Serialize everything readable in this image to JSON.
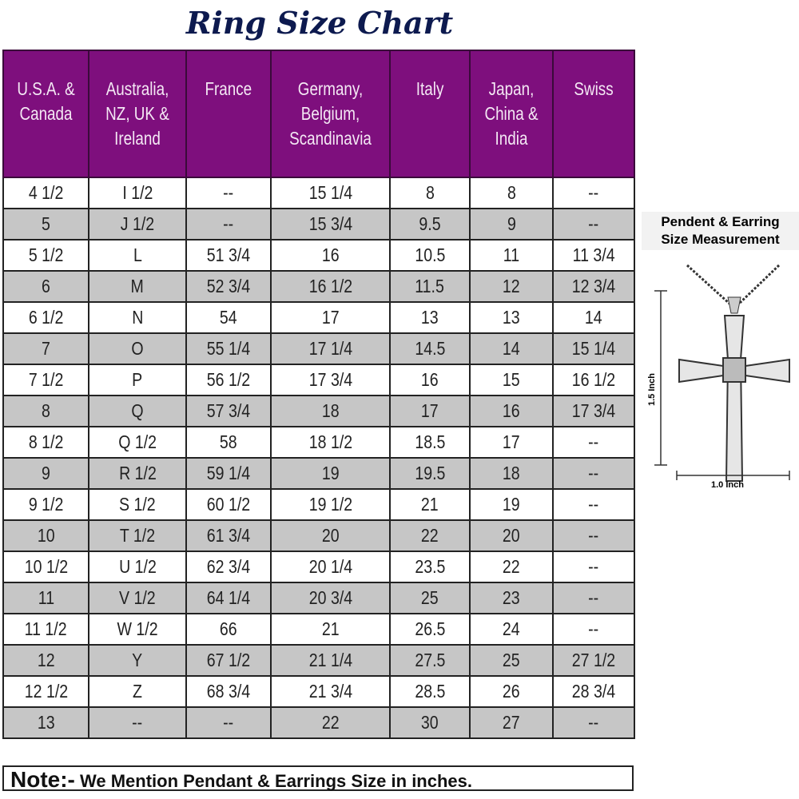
{
  "title": "Ring Size Chart",
  "table": {
    "headers": [
      "U.S.A. & Canada",
      "Australia, NZ, UK & Ireland",
      "France",
      "Germany, Belgium, Scandinavia",
      "Italy",
      "Japan, China & India",
      "Swiss"
    ],
    "rows": [
      [
        "4 1/2",
        "I 1/2",
        "--",
        "15 1/4",
        "8",
        "8",
        "--"
      ],
      [
        "5",
        "J 1/2",
        "--",
        "15 3/4",
        "9.5",
        "9",
        "--"
      ],
      [
        "5 1/2",
        "L",
        "51 3/4",
        "16",
        "10.5",
        "11",
        "11 3/4"
      ],
      [
        "6",
        "M",
        "52 3/4",
        "16 1/2",
        "11.5",
        "12",
        "12 3/4"
      ],
      [
        "6 1/2",
        "N",
        "54",
        "17",
        "13",
        "13",
        "14"
      ],
      [
        "7",
        "O",
        "55 1/4",
        "17 1/4",
        "14.5",
        "14",
        "15 1/4"
      ],
      [
        "7 1/2",
        "P",
        "56 1/2",
        "17 3/4",
        "16",
        "15",
        "16 1/2"
      ],
      [
        "8",
        "Q",
        "57 3/4",
        "18",
        "17",
        "16",
        "17 3/4"
      ],
      [
        "8 1/2",
        "Q 1/2",
        "58",
        "18 1/2",
        "18.5",
        "17",
        "--"
      ],
      [
        "9",
        "R 1/2",
        "59 1/4",
        "19",
        "19.5",
        "18",
        "--"
      ],
      [
        "9 1/2",
        "S 1/2",
        "60 1/2",
        "19 1/2",
        "21",
        "19",
        "--"
      ],
      [
        "10",
        "T 1/2",
        "61 3/4",
        "20",
        "22",
        "20",
        "--"
      ],
      [
        "10 1/2",
        "U 1/2",
        "62 3/4",
        "20 1/4",
        "23.5",
        "22",
        "--"
      ],
      [
        "11",
        "V 1/2",
        "64 1/4",
        "20 3/4",
        "25",
        "23",
        "--"
      ],
      [
        "11 1/2",
        "W 1/2",
        "66",
        "21",
        "26.5",
        "24",
        "--"
      ],
      [
        "12",
        "Y",
        "67 1/2",
        "21 1/4",
        "27.5",
        "25",
        "27 1/2"
      ],
      [
        "12 1/2",
        "Z",
        "68 3/4",
        "21 3/4",
        "28.5",
        "26",
        "28 3/4"
      ],
      [
        "13",
        "--",
        "--",
        "22",
        "30",
        "27",
        "--"
      ]
    ]
  },
  "note": {
    "label": "Note:-",
    "text": " We Mention Pendant & Earrings Size in inches."
  },
  "pendant": {
    "title_line1": "Pendent & Earring",
    "title_line2": "Size Measurement",
    "height_label": "1.5 Inch",
    "width_label": "1.0 Inch"
  },
  "colors": {
    "header": "#7e0f7d",
    "stripe": "#c6c6c6",
    "title": "#0d1a4f"
  }
}
